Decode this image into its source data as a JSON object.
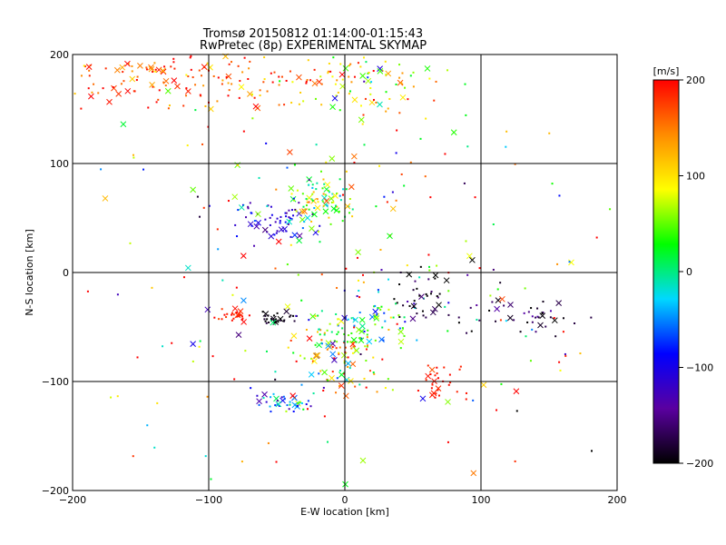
{
  "chart_data": {
    "type": "scatter",
    "title": "Tromsø 20150812 01:14:00-01:15:43",
    "subtitle": "RwPretec (8p) EXPERIMENTAL SKYMAP",
    "xlabel": "E-W location [km]",
    "ylabel": "N-S location [km]",
    "xlim": [
      -200,
      200
    ],
    "ylim": [
      -200,
      200
    ],
    "xticks": [
      -200,
      -100,
      0,
      100,
      200
    ],
    "yticks": [
      -200,
      -100,
      0,
      100,
      200
    ],
    "xtick_labels": [
      "−200",
      "−100",
      "0",
      "100",
      "200"
    ],
    "ytick_labels": [
      "−200",
      "−100",
      "0",
      "100",
      "200"
    ],
    "grid": true,
    "colorbar": {
      "label": "[m/s]",
      "min": -200,
      "max": 200,
      "ticks": [
        200,
        100,
        0,
        -100,
        -200
      ],
      "tick_labels": [
        "200",
        "100",
        "0",
        "−100",
        "−200"
      ],
      "colors": [
        "#000000",
        "#5a00a0",
        "#0000ff",
        "#00d8ff",
        "#00ff00",
        "#ffff00",
        "#ff8c00",
        "#ff0000"
      ]
    },
    "clusters": [
      {
        "cx": -120,
        "cy": 180,
        "sx": 60,
        "sy": 15,
        "n": 180,
        "v": 170,
        "vsd": 45
      },
      {
        "cx": 20,
        "cy": 175,
        "sx": 30,
        "sy": 18,
        "n": 90,
        "v": 90,
        "vsd": 70
      },
      {
        "cx": -50,
        "cy": 50,
        "sx": 15,
        "sy": 9,
        "n": 60,
        "v": -110,
        "vsd": 25
      },
      {
        "cx": -20,
        "cy": 65,
        "sx": 12,
        "sy": 16,
        "n": 90,
        "v": 40,
        "vsd": 50
      },
      {
        "cx": -80,
        "cy": -40,
        "sx": 6,
        "sy": 3,
        "n": 28,
        "v": 190,
        "vsd": 10
      },
      {
        "cx": -50,
        "cy": -42,
        "sx": 7,
        "sy": 3,
        "n": 30,
        "v": -195,
        "vsd": 8
      },
      {
        "cx": -5,
        "cy": -75,
        "sx": 18,
        "sy": 22,
        "n": 110,
        "v": 80,
        "vsd": 90
      },
      {
        "cx": 20,
        "cy": -45,
        "sx": 20,
        "sy": 15,
        "n": 60,
        "v": 0,
        "vsd": 60
      },
      {
        "cx": 65,
        "cy": -20,
        "sx": 15,
        "sy": 12,
        "n": 45,
        "v": -190,
        "vsd": 30
      },
      {
        "cx": 70,
        "cy": -100,
        "sx": 8,
        "sy": 10,
        "n": 30,
        "v": 190,
        "vsd": 10
      },
      {
        "cx": 135,
        "cy": -40,
        "sx": 20,
        "sy": 7,
        "n": 40,
        "v": -185,
        "vsd": 25
      },
      {
        "cx": -45,
        "cy": -120,
        "sx": 10,
        "sy": 5,
        "n": 40,
        "v": -70,
        "vsd": 50
      },
      {
        "cx": 0,
        "cy": 0,
        "sx": 110,
        "sy": 110,
        "n": 260,
        "v": 60,
        "vsd": 130
      }
    ]
  }
}
